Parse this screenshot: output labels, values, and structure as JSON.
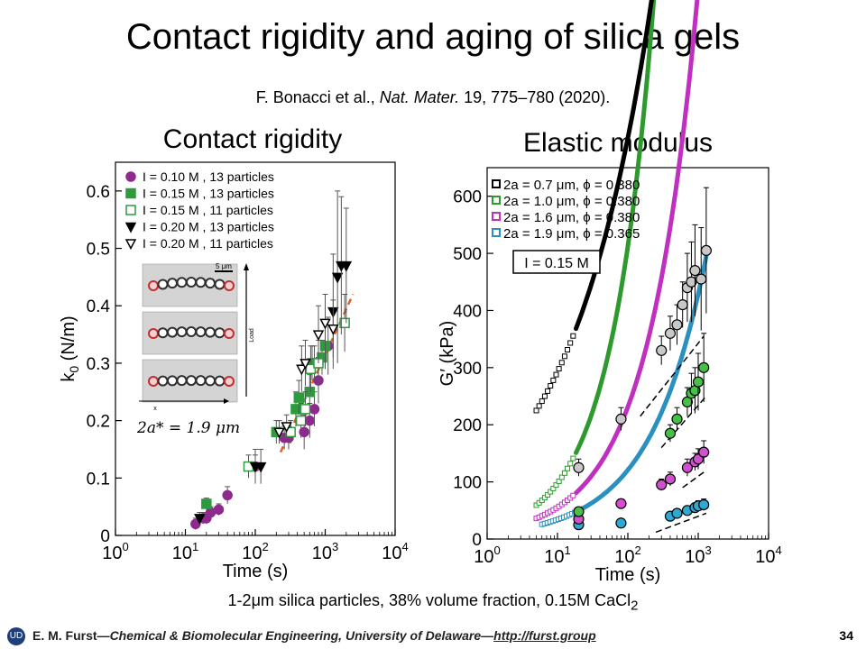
{
  "slide": {
    "title": "Contact rigidity and aging of silica gels",
    "citation_authors": "F. Bonacci et al., ",
    "citation_journal": "Nat. Mater.",
    "citation_rest": " 19, 775–780 (2020).",
    "caption_main": "1-2μm silica particles, 38% volume fraction, 0.15M CaCl",
    "caption_sub": "2",
    "footer_author": "E. M. Furst",
    "footer_dash1": "—",
    "footer_dept": "Chemical & Biomolecular Engineering, University of Delaware",
    "footer_dash2": "—",
    "footer_link": "http://furst.group",
    "page_number": "34",
    "logo_text": "UD"
  },
  "chart_data": [
    {
      "type": "scatter",
      "title": "Contact rigidity",
      "xlabel": "Time (s)",
      "ylabel": "k",
      "ylabel_sub": "0",
      "ylabel_unit": " (N/m)",
      "xscale": "log",
      "xlim": [
        1,
        10000
      ],
      "ylim": [
        0,
        0.65
      ],
      "xticks": [
        {
          "base": "10",
          "exp": "0"
        },
        {
          "base": "10",
          "exp": "1"
        },
        {
          "base": "10",
          "exp": "2"
        },
        {
          "base": "10",
          "exp": "3"
        },
        {
          "base": "10",
          "exp": "4"
        }
      ],
      "yticks": [
        "0",
        "0.1",
        "0.2",
        "0.3",
        "0.4",
        "0.5",
        "0.6"
      ],
      "legend_position": "top-left",
      "inset_label": "2a* = 1.9 μm",
      "inset_scale": "5 μm",
      "inset_load": "Load",
      "inset_x": "x",
      "series": [
        {
          "name": "I = 0.10 M , 13 particles",
          "marker": "circle",
          "fill": true,
          "color": "#8e2a8e",
          "points": [
            [
              14,
              0.02
            ],
            [
              18,
              0.03
            ],
            [
              20,
              0.03
            ],
            [
              23,
              0.04
            ],
            [
              30,
              0.045
            ],
            [
              40,
              0.07
            ],
            [
              100,
              0.12
            ],
            [
              260,
              0.17
            ],
            [
              300,
              0.17
            ],
            [
              500,
              0.18
            ],
            [
              600,
              0.2
            ],
            [
              700,
              0.22
            ],
            [
              800,
              0.27
            ],
            [
              1100,
              0.33
            ]
          ],
          "err": [
            0.01,
            0.01,
            0.01,
            0.01,
            0.01,
            0.015,
            0.02,
            0.02,
            0.02,
            0.03,
            0.03,
            0.03,
            0.04,
            0.05
          ]
        },
        {
          "name": "I = 0.15 M , 13 particles",
          "marker": "square",
          "fill": true,
          "color": "#2e9a3e",
          "points": [
            [
              20,
              0.055
            ],
            [
              200,
              0.18
            ],
            [
              380,
              0.22
            ],
            [
              420,
              0.24
            ],
            [
              600,
              0.25
            ],
            [
              650,
              0.3
            ],
            [
              700,
              0.3
            ],
            [
              900,
              0.31
            ],
            [
              1000,
              0.33
            ]
          ],
          "err": [
            0.01,
            0.02,
            0.03,
            0.03,
            0.03,
            0.03,
            0.03,
            0.03,
            0.04
          ]
        },
        {
          "name": "I = 0.15 M , 11 particles",
          "marker": "square",
          "fill": false,
          "color": "#2e9a3e",
          "points": [
            [
              80,
              0.12
            ],
            [
              320,
              0.18
            ],
            [
              450,
              0.2
            ],
            [
              520,
              0.22
            ],
            [
              620,
              0.29
            ],
            [
              800,
              0.3
            ],
            [
              1900,
              0.37
            ]
          ],
          "err": [
            0.02,
            0.02,
            0.03,
            0.03,
            0.04,
            0.04,
            0.05
          ]
        },
        {
          "name": "I = 0.20 M , 13 particles",
          "marker": "triangle-down",
          "fill": true,
          "color": "#000000",
          "points": [
            [
              16,
              0.03
            ],
            [
              100,
              0.12
            ],
            [
              120,
              0.12
            ],
            [
              1300,
              0.39
            ],
            [
              1500,
              0.45
            ],
            [
              1700,
              0.47
            ],
            [
              2000,
              0.47
            ]
          ],
          "err": [
            0.01,
            0.03,
            0.03,
            0.1,
            0.15,
            0.12,
            0.1
          ]
        },
        {
          "name": "I = 0.20 M , 11 particles",
          "marker": "triangle-down",
          "fill": false,
          "color": "#000000",
          "points": [
            [
              220,
              0.18
            ],
            [
              280,
              0.19
            ],
            [
              460,
              0.29
            ],
            [
              520,
              0.3
            ],
            [
              800,
              0.35
            ],
            [
              1000,
              0.37
            ],
            [
              1300,
              0.36
            ]
          ],
          "err": [
            0.02,
            0.02,
            0.04,
            0.04,
            0.05,
            0.05,
            0.05
          ]
        }
      ],
      "fit_line": {
        "color": "#e06020",
        "style": "dashed",
        "points": [
          [
            230,
            0.145
          ],
          [
            2500,
            0.42
          ]
        ]
      }
    },
    {
      "type": "scatter",
      "title": "Elastic modulus",
      "xlabel": "Time (s)",
      "ylabel": "G′ (kPa)",
      "xscale": "log",
      "xlim": [
        1,
        10000
      ],
      "ylim": [
        0,
        650
      ],
      "xticks": [
        {
          "base": "10",
          "exp": "0"
        },
        {
          "base": "10",
          "exp": "1"
        },
        {
          "base": "10",
          "exp": "2"
        },
        {
          "base": "10",
          "exp": "3"
        },
        {
          "base": "10",
          "exp": "4"
        }
      ],
      "yticks": [
        "0",
        "100",
        "200",
        "300",
        "400",
        "500",
        "600"
      ],
      "legend_position": "top-left",
      "annotation": "I = 0.15 M",
      "series": [
        {
          "name": "2a = 0.7 μm, ϕ = 0.380",
          "color": "#000000",
          "gray": "#c8c8c8",
          "start": 5,
          "end": 1300,
          "a": 122,
          "b": 0.38,
          "big": [
            [
              20,
              125
            ],
            [
              80,
              210
            ],
            [
              300,
              330
            ],
            [
              400,
              360
            ],
            [
              500,
              375
            ],
            [
              600,
              410
            ],
            [
              700,
              440
            ],
            [
              800,
              450
            ],
            [
              900,
              470
            ],
            [
              1100,
              455
            ],
            [
              1300,
              505
            ]
          ],
          "err": [
            15,
            20,
            25,
            30,
            35,
            40,
            60,
            70,
            80,
            90,
            110
          ],
          "dash": [
            [
              150,
              215
            ],
            [
              1200,
              355
            ]
          ]
        },
        {
          "name": "2a = 1.0 μm, ϕ = 0.380",
          "color": "#2e9a2e",
          "gray": "#46c046",
          "start": 5,
          "end": 1300,
          "a": 18.6,
          "b": 0.72,
          "big": [
            [
              20,
              48
            ],
            [
              400,
              185
            ],
            [
              500,
              210
            ],
            [
              700,
              240
            ],
            [
              800,
              255
            ],
            [
              900,
              260
            ],
            [
              1000,
              275
            ],
            [
              1200,
              300
            ]
          ],
          "err": [
            8,
            15,
            20,
            25,
            35,
            40,
            50,
            60
          ],
          "dash": [
            [
              300,
              160
            ],
            [
              1300,
              250
            ]
          ]
        },
        {
          "name": "2a = 1.6 μm, ϕ = 0.380",
          "color": "#c030c0",
          "gray": "#d050d0",
          "start": 5,
          "end": 1300,
          "a": 13.3,
          "b": 0.62,
          "big": [
            [
              20,
              35
            ],
            [
              80,
              62
            ],
            [
              300,
              95
            ],
            [
              400,
              105
            ],
            [
              700,
              125
            ],
            [
              900,
              135
            ],
            [
              1000,
              140
            ],
            [
              1200,
              152
            ]
          ],
          "err": [
            6,
            8,
            10,
            12,
            15,
            15,
            18,
            20
          ],
          "dash": [
            [
              600,
              90
            ],
            [
              1300,
              120
            ]
          ]
        },
        {
          "name": "2a = 1.9 μm, ϕ = 0.365",
          "color": "#2a90c0",
          "gray": "#30a8d0",
          "start": 6,
          "end": 1300,
          "a": 9.6,
          "b": 0.55,
          "big": [
            [
              20,
              25
            ],
            [
              80,
              28
            ],
            [
              400,
              40
            ],
            [
              500,
              45
            ],
            [
              700,
              50
            ],
            [
              900,
              55
            ],
            [
              1000,
              58
            ],
            [
              1200,
              60
            ]
          ],
          "err": [
            4,
            5,
            6,
            7,
            8,
            8,
            9,
            10
          ],
          "dash": [
            [
              250,
              12
            ],
            [
              1300,
              45
            ]
          ]
        }
      ]
    }
  ]
}
